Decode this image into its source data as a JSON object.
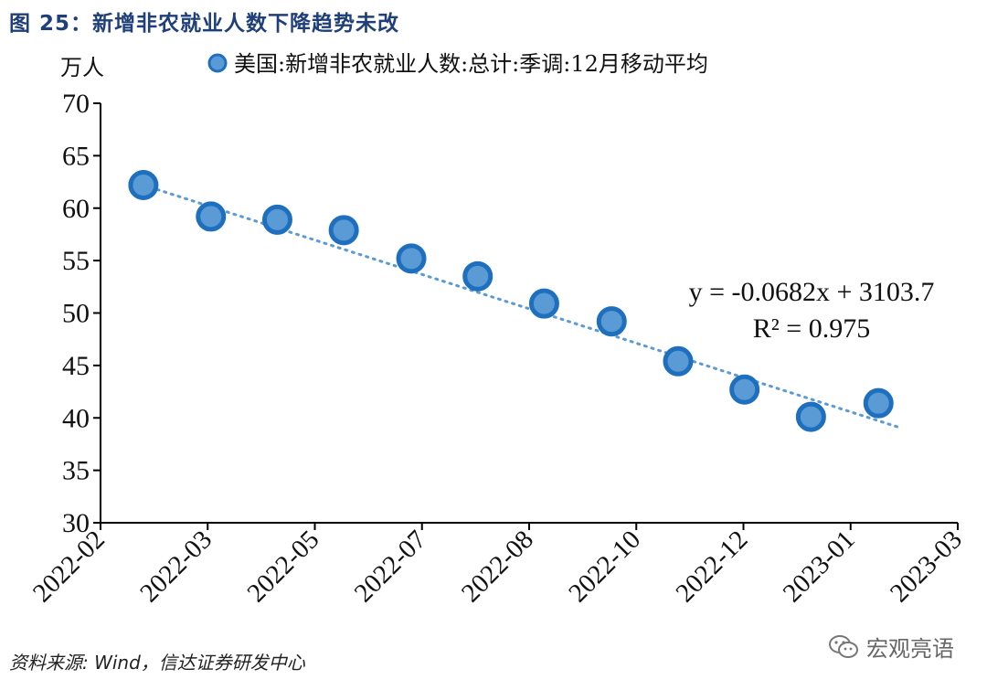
{
  "figure_title": "图 25：新增非农就业人数下降趋势未改",
  "source": "资料来源: Wind，信达证券研发中心",
  "watermark": "宏观亮语",
  "watermark_icon": "wechat-icon",
  "chart_data": {
    "type": "scatter",
    "title": "",
    "unit_label": "万人",
    "legend": "美国:新增非农就业人数:总计:季调:12月移动平均",
    "legend_placement": "top",
    "ylim": [
      30,
      70
    ],
    "yticks": [
      30,
      35,
      40,
      45,
      50,
      55,
      60,
      65,
      70
    ],
    "xticks": [
      "2022-02",
      "2022-03",
      "2022-05",
      "2022-07",
      "2022-08",
      "2022-10",
      "2022-12",
      "2023-01",
      "2023-03"
    ],
    "series": [
      {
        "name": "美国:新增非农就业人数:总计:季调:12月移动平均",
        "color": "#5b9bd5",
        "edge_color": "#1f6fbf",
        "points": [
          {
            "x": 0.4,
            "y": 62.2
          },
          {
            "x": 1.03,
            "y": 59.2
          },
          {
            "x": 1.65,
            "y": 58.9
          },
          {
            "x": 2.27,
            "y": 57.9
          },
          {
            "x": 2.9,
            "y": 55.2
          },
          {
            "x": 3.52,
            "y": 53.5
          },
          {
            "x": 4.14,
            "y": 50.9
          },
          {
            "x": 4.77,
            "y": 49.2
          },
          {
            "x": 5.39,
            "y": 45.4
          },
          {
            "x": 6.01,
            "y": 42.7
          },
          {
            "x": 6.63,
            "y": 40.1
          },
          {
            "x": 7.26,
            "y": 41.4
          }
        ]
      }
    ],
    "trendline": {
      "style": "dotted",
      "color": "#5b9bd5",
      "start": {
        "x": 0.4,
        "y": 62.2
      },
      "end": {
        "x": 7.45,
        "y": 39.1
      },
      "equation": "y = -0.0682x + 3103.7",
      "r_squared": "R² = 0.975"
    },
    "grid": false
  }
}
